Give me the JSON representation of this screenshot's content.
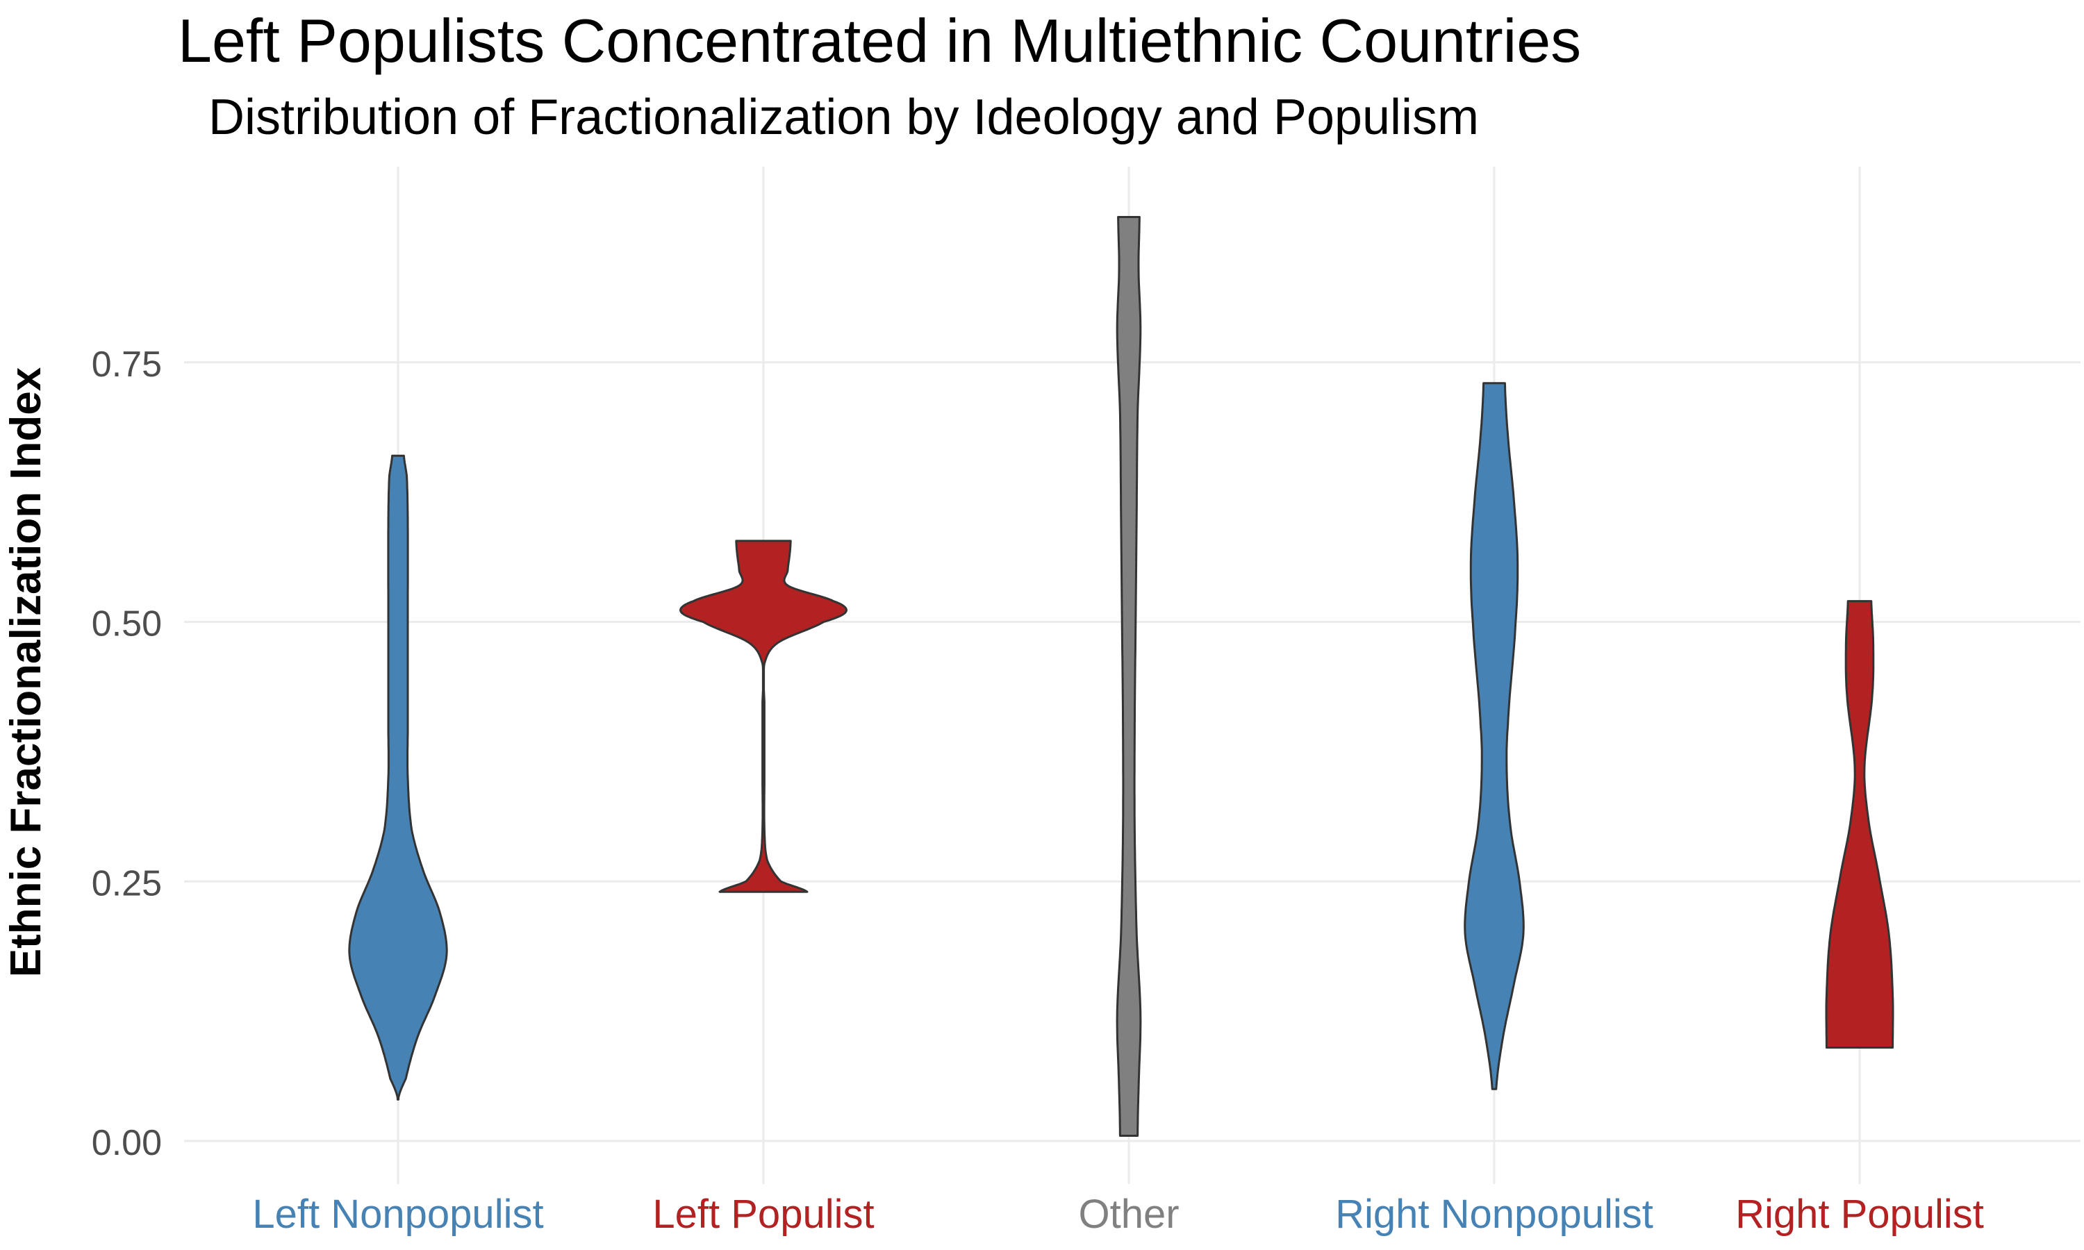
{
  "chart_data": {
    "type": "violin",
    "title": "Left Populists Concentrated in Multiethnic Countries",
    "subtitle": "Distribution of Fractionalization by Ideology and Populism",
    "xlabel": "",
    "ylabel": "Ethnic Fractionalization Index",
    "ylim": [
      0,
      0.9
    ],
    "yticks": [
      "0.00",
      "0.25",
      "0.50",
      "0.75"
    ],
    "grid": true,
    "legend": "none",
    "categories": [
      "Left Nonpopulist",
      "Left Populist",
      "Other",
      "Right Nonpopulist",
      "Right Populist"
    ],
    "series": [
      {
        "category": "Left Nonpopulist",
        "color": "#4682B4",
        "min": 0.04,
        "max": 0.66,
        "density": [
          [
            0.04,
            0.0
          ],
          [
            0.06,
            0.08
          ],
          [
            0.1,
            0.2
          ],
          [
            0.14,
            0.38
          ],
          [
            0.18,
            0.5
          ],
          [
            0.22,
            0.43
          ],
          [
            0.26,
            0.26
          ],
          [
            0.3,
            0.14
          ],
          [
            0.35,
            0.1
          ],
          [
            0.4,
            0.1
          ],
          [
            0.5,
            0.1
          ],
          [
            0.6,
            0.1
          ],
          [
            0.64,
            0.09
          ],
          [
            0.66,
            0.06
          ]
        ]
      },
      {
        "category": "Left Populist",
        "color": "#B22222",
        "min": 0.24,
        "max": 0.58,
        "density": [
          [
            0.24,
            0.45
          ],
          [
            0.25,
            0.18
          ],
          [
            0.27,
            0.04
          ],
          [
            0.3,
            0.01
          ],
          [
            0.35,
            0.01
          ],
          [
            0.42,
            0.01
          ],
          [
            0.46,
            0.01
          ],
          [
            0.48,
            0.15
          ],
          [
            0.5,
            0.62
          ],
          [
            0.51,
            0.85
          ],
          [
            0.52,
            0.72
          ],
          [
            0.535,
            0.25
          ],
          [
            0.55,
            0.25
          ],
          [
            0.565,
            0.27
          ],
          [
            0.578,
            0.28
          ]
        ]
      },
      {
        "category": "Other",
        "color": "#808080",
        "min": 0.005,
        "max": 0.89,
        "density": [
          [
            0.005,
            0.09
          ],
          [
            0.05,
            0.1
          ],
          [
            0.12,
            0.12
          ],
          [
            0.2,
            0.08
          ],
          [
            0.3,
            0.06
          ],
          [
            0.4,
            0.06
          ],
          [
            0.5,
            0.07
          ],
          [
            0.6,
            0.08
          ],
          [
            0.7,
            0.09
          ],
          [
            0.78,
            0.12
          ],
          [
            0.84,
            0.1
          ],
          [
            0.89,
            0.11
          ]
        ]
      },
      {
        "category": "Right Nonpopulist",
        "color": "#4682B4",
        "min": 0.05,
        "max": 0.73,
        "density": [
          [
            0.05,
            0.02
          ],
          [
            0.1,
            0.09
          ],
          [
            0.15,
            0.2
          ],
          [
            0.2,
            0.3
          ],
          [
            0.25,
            0.26
          ],
          [
            0.3,
            0.17
          ],
          [
            0.35,
            0.13
          ],
          [
            0.4,
            0.14
          ],
          [
            0.5,
            0.22
          ],
          [
            0.56,
            0.24
          ],
          [
            0.62,
            0.2
          ],
          [
            0.68,
            0.14
          ],
          [
            0.73,
            0.11
          ]
        ]
      },
      {
        "category": "Right Populist",
        "color": "#B22222",
        "min": 0.09,
        "max": 0.52,
        "density": [
          [
            0.09,
            0.34
          ],
          [
            0.14,
            0.34
          ],
          [
            0.2,
            0.3
          ],
          [
            0.26,
            0.19
          ],
          [
            0.31,
            0.09
          ],
          [
            0.36,
            0.05
          ],
          [
            0.43,
            0.13
          ],
          [
            0.48,
            0.14
          ],
          [
            0.52,
            0.12
          ]
        ]
      }
    ]
  },
  "colors": {
    "blue": "#4682B4",
    "red": "#B22222",
    "gray": "#808080",
    "outline": "#333333",
    "grid": "#EBEBEB",
    "tick_text": "#4D4D4D"
  }
}
